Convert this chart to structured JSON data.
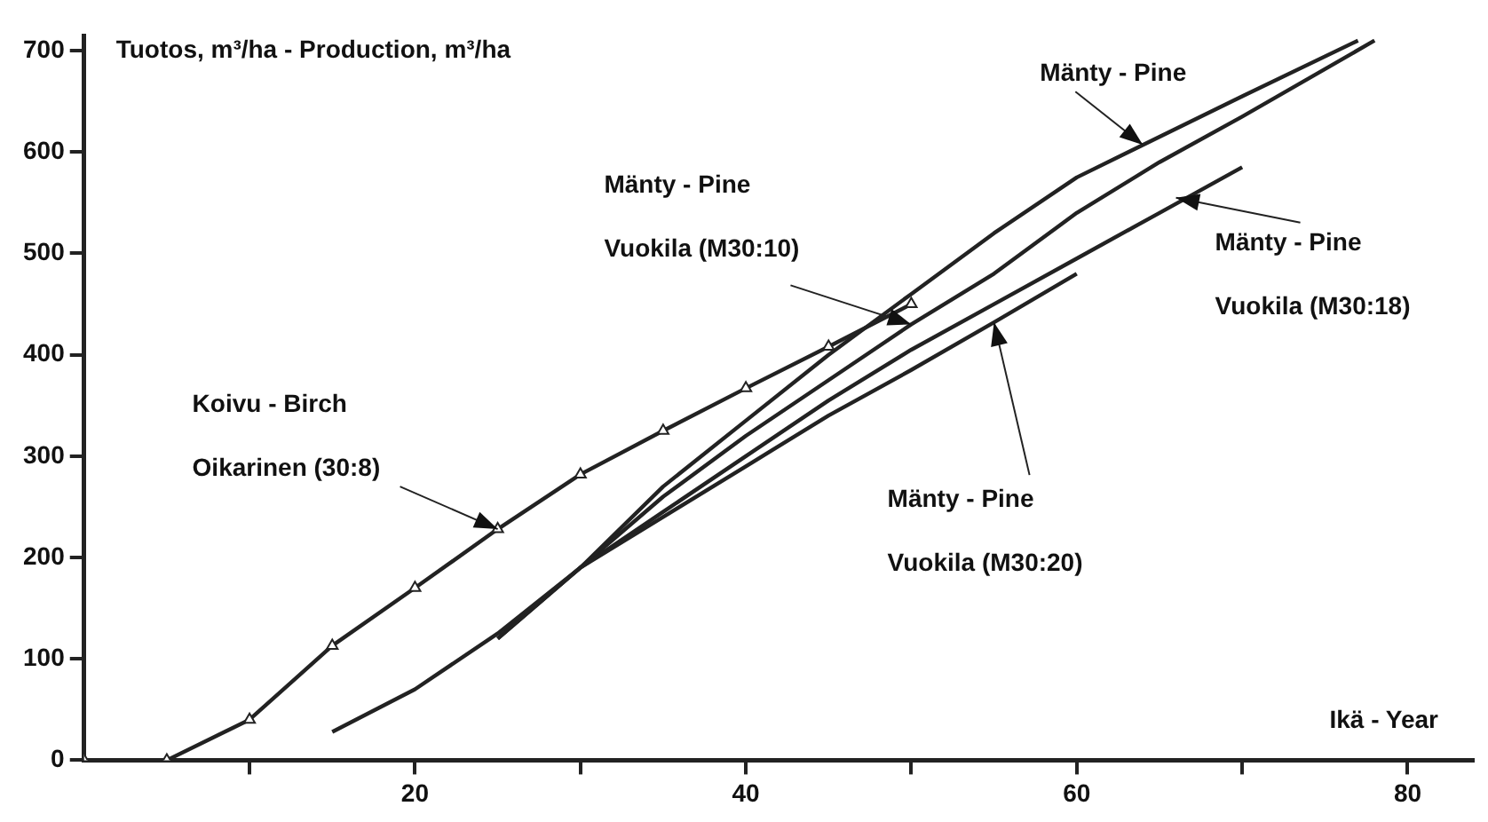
{
  "chart_data": {
    "type": "line",
    "ylabel": "Tuotos, m³/ha - Production, m³/ha",
    "xlabel": "Ikä - Year",
    "xlim": [
      0,
      84
    ],
    "xticks": [
      {
        "value": 10,
        "label": null
      },
      20,
      {
        "value": 30,
        "label": null
      },
      40,
      {
        "value": 50,
        "label": null
      },
      60,
      {
        "value": 70,
        "label": null
      },
      80
    ],
    "ylim": [
      0,
      715
    ],
    "yticks": [
      0,
      100,
      200,
      300,
      400,
      500,
      600,
      700
    ],
    "grid": false,
    "legend": false,
    "series": [
      {
        "color": "#222222",
        "marker": "triangle",
        "x": [
          0,
          5,
          10,
          15,
          20,
          25,
          30,
          35,
          40,
          45,
          50
        ],
        "values": [
          0,
          0,
          40,
          113,
          170,
          228,
          282,
          325,
          367,
          408,
          450
        ]
      },
      {
        "color": "#222222",
        "marker": "none",
        "x": [
          15,
          20,
          25,
          30,
          35,
          40,
          45,
          50,
          55,
          60
        ],
        "values": [
          28,
          70,
          125,
          190,
          240,
          290,
          340,
          385,
          432,
          480
        ]
      },
      {
        "color": "#222222",
        "marker": "none",
        "x": [
          25,
          30,
          35,
          40,
          45,
          50,
          55,
          60,
          65,
          70
        ],
        "values": [
          120,
          190,
          245,
          300,
          355,
          405,
          450,
          495,
          540,
          585
        ]
      },
      {
        "color": "#222222",
        "marker": "none",
        "x": [
          25,
          30,
          35,
          40,
          45,
          50,
          55,
          60,
          65,
          70,
          78
        ],
        "values": [
          120,
          190,
          260,
          320,
          375,
          430,
          480,
          540,
          590,
          635,
          710
        ]
      },
      {
        "color": "#222222",
        "marker": "none",
        "x": [
          30,
          35,
          40,
          45,
          50,
          55,
          60,
          70,
          77
        ],
        "values": [
          190,
          270,
          335,
          400,
          460,
          520,
          575,
          655,
          710
        ]
      }
    ],
    "annotations": [
      "Koivu - Birch",
      {
        "text": "Oikarinen (30:8)",
        "x": 25,
        "y": 228
      },
      "Mänty - Pine",
      {
        "text": "Vuokila (M30:10)",
        "x": 50,
        "y": 430
      },
      {
        "text": "Mänty - Pine",
        "x": 64,
        "y": 607
      },
      {
        "text": "Mänty - Pine",
        "x": 66,
        "y": 555
      },
      "Vuokila (M30:18)",
      {
        "text": "Mänty - Pine",
        "x": 55,
        "y": 432
      },
      "Vuokila (M30:20)"
    ]
  }
}
